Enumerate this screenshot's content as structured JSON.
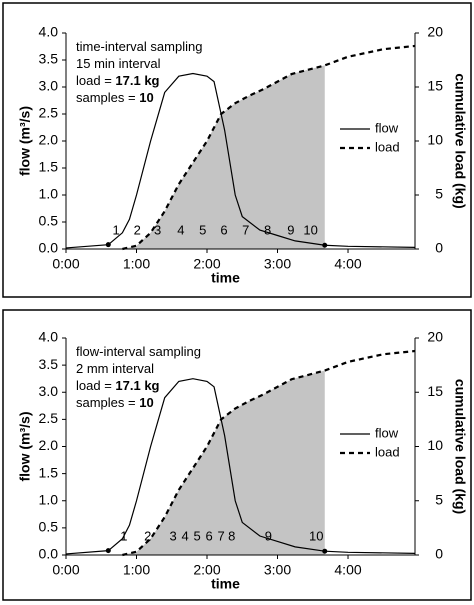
{
  "chart_data": [
    {
      "type": "line",
      "annotations": [
        {
          "text": "time-interval sampling"
        },
        {
          "text": "15 min interval"
        },
        {
          "text": "load = ",
          "bold": "17.1 kg"
        },
        {
          "text": "samples = ",
          "bold": "10"
        }
      ],
      "xlabel": "time",
      "ylabel": "flow (m³/s)",
      "y2label": "cumulative load (kg)",
      "xlim": [
        0,
        4.95
      ],
      "ylim": [
        0,
        4
      ],
      "y2lim": [
        0,
        20
      ],
      "xticks": [
        {
          "value": 0,
          "label": "0:00"
        },
        {
          "value": 1,
          "label": "1:00"
        },
        {
          "value": 2,
          "label": "2:00"
        },
        {
          "value": 3,
          "label": "3:00"
        },
        {
          "value": 4,
          "label": "4:00"
        }
      ],
      "yticks": [
        {
          "value": 0,
          "label": "0.0"
        },
        {
          "value": 0.5,
          "label": "0.5"
        },
        {
          "value": 1,
          "label": "1.0"
        },
        {
          "value": 1.5,
          "label": "1.5"
        },
        {
          "value": 2,
          "label": "2.0"
        },
        {
          "value": 2.5,
          "label": "2.5"
        },
        {
          "value": 3,
          "label": "3.0"
        },
        {
          "value": 3.5,
          "label": "3.5"
        },
        {
          "value": 4,
          "label": "4.0"
        }
      ],
      "y2ticks": [
        0,
        5,
        10,
        15,
        20
      ],
      "series": [
        {
          "name": "flow",
          "color": "#000000",
          "dash": "solid",
          "x": [
            0,
            0.6,
            0.8,
            0.9,
            1.0,
            1.2,
            1.4,
            1.6,
            1.8,
            2.0,
            2.1,
            2.25,
            2.4,
            2.5,
            2.75,
            3.0,
            3.25,
            3.67,
            4.0,
            4.95
          ],
          "values": [
            0.02,
            0.08,
            0.3,
            0.55,
            1.0,
            2.0,
            2.9,
            3.2,
            3.25,
            3.2,
            3.1,
            2.2,
            1.0,
            0.6,
            0.35,
            0.25,
            0.15,
            0.07,
            0.05,
            0.03
          ]
        },
        {
          "name": "load",
          "color": "#000000",
          "dash": "dashed",
          "axis": "y2",
          "x": [
            0.8,
            1.0,
            1.2,
            1.4,
            1.6,
            1.8,
            2.0,
            2.2,
            2.4,
            2.6,
            2.8,
            3.0,
            3.2,
            3.67,
            4.0,
            4.5,
            4.95
          ],
          "values": [
            0,
            0.3,
            1.5,
            3.5,
            6,
            8,
            10,
            12.5,
            13.5,
            14.2,
            14.8,
            15.5,
            16.2,
            17,
            17.8,
            18.5,
            18.8
          ]
        }
      ],
      "shade_end": 3.67,
      "dots": {
        "x": [
          0.6,
          3.67
        ],
        "y": [
          0.08,
          0.07
        ]
      },
      "samples": {
        "x": [
          0.71,
          1.01,
          1.3,
          1.63,
          1.94,
          2.24,
          2.55,
          2.86,
          3.19,
          3.47
        ],
        "labels": [
          "1",
          "2",
          "3",
          "4",
          "5",
          "6",
          "7",
          "8",
          "9",
          "10"
        ]
      }
    },
    {
      "type": "line",
      "annotations": [
        {
          "text": "flow-interval sampling"
        },
        {
          "text": "2 mm interval"
        },
        {
          "text": "load = ",
          "bold": "17.1 kg"
        },
        {
          "text": "samples = ",
          "bold": "10"
        }
      ],
      "xlabel": "time",
      "ylabel": "flow (m³/s)",
      "y2label": "cumulative load (kg)",
      "xlim": [
        0,
        4.95
      ],
      "ylim": [
        0,
        4
      ],
      "y2lim": [
        0,
        20
      ],
      "xticks": [
        {
          "value": 0,
          "label": "0:00"
        },
        {
          "value": 1,
          "label": "1:00"
        },
        {
          "value": 2,
          "label": "2:00"
        },
        {
          "value": 3,
          "label": "3:00"
        },
        {
          "value": 4,
          "label": "4:00"
        }
      ],
      "yticks": [
        {
          "value": 0,
          "label": "0.0"
        },
        {
          "value": 0.5,
          "label": "0.5"
        },
        {
          "value": 1,
          "label": "1.0"
        },
        {
          "value": 1.5,
          "label": "1.5"
        },
        {
          "value": 2,
          "label": "2.0"
        },
        {
          "value": 2.5,
          "label": "2.5"
        },
        {
          "value": 3,
          "label": "3.0"
        },
        {
          "value": 3.5,
          "label": "3.5"
        },
        {
          "value": 4,
          "label": "4.0"
        }
      ],
      "y2ticks": [
        0,
        5,
        10,
        15,
        20
      ],
      "series": [
        {
          "name": "flow",
          "color": "#000000",
          "dash": "solid",
          "x": [
            0,
            0.6,
            0.8,
            0.9,
            1.0,
            1.2,
            1.4,
            1.6,
            1.8,
            2.0,
            2.1,
            2.25,
            2.4,
            2.5,
            2.75,
            3.0,
            3.25,
            3.67,
            4.0,
            4.95
          ],
          "values": [
            0.02,
            0.08,
            0.3,
            0.55,
            1.0,
            2.0,
            2.9,
            3.2,
            3.25,
            3.2,
            3.1,
            2.2,
            1.0,
            0.6,
            0.35,
            0.25,
            0.15,
            0.07,
            0.05,
            0.03
          ]
        },
        {
          "name": "load",
          "color": "#000000",
          "dash": "dashed",
          "axis": "y2",
          "x": [
            0.8,
            1.0,
            1.2,
            1.4,
            1.6,
            1.8,
            2.0,
            2.2,
            2.4,
            2.6,
            2.8,
            3.0,
            3.2,
            3.67,
            4.0,
            4.5,
            4.95
          ],
          "values": [
            0,
            0.3,
            1.5,
            3.5,
            6,
            8,
            10,
            12.5,
            13.5,
            14.2,
            14.8,
            15.5,
            16.2,
            17,
            17.8,
            18.5,
            18.8
          ]
        }
      ],
      "shade_end": 3.67,
      "dots": {
        "x": [
          0.6,
          3.67
        ],
        "y": [
          0.08,
          0.07
        ]
      },
      "samples": {
        "x": [
          0.82,
          1.16,
          1.52,
          1.69,
          1.86,
          2.03,
          2.2,
          2.35,
          2.87,
          3.55
        ],
        "labels": [
          "1",
          "2",
          "3",
          "4",
          "5",
          "6",
          "7",
          "8",
          "9",
          "10"
        ]
      }
    }
  ]
}
